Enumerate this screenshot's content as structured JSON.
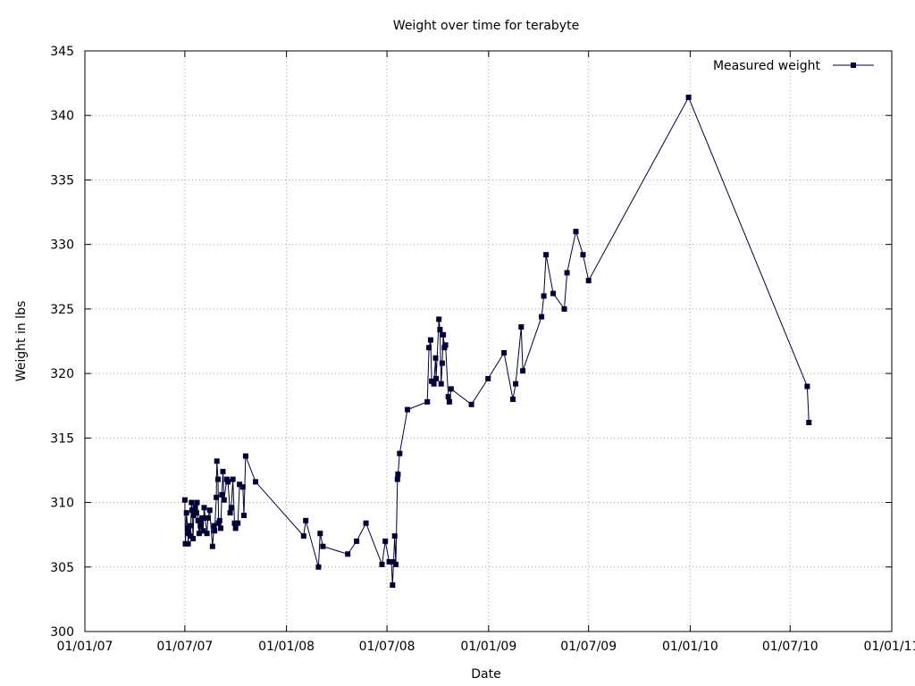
{
  "chart_data": {
    "type": "line",
    "title": "Weight over time for terabyte",
    "xlabel": "Date",
    "ylabel": "Weight in lbs",
    "xlim": [
      "2007-01-01",
      "2011-01-01"
    ],
    "ylim": [
      300,
      345
    ],
    "x_tick_labels": [
      "01/01/07",
      "01/07/07",
      "01/01/08",
      "01/07/08",
      "01/01/09",
      "01/07/09",
      "01/01/10",
      "01/07/10",
      "01/01/11"
    ],
    "x_ticks": [
      "2007-01-01",
      "2007-07-01",
      "2008-01-01",
      "2008-07-01",
      "2009-01-01",
      "2009-07-01",
      "2010-01-01",
      "2010-07-01",
      "2011-01-01"
    ],
    "y_ticks": [
      300,
      305,
      310,
      315,
      320,
      325,
      330,
      335,
      340,
      345
    ],
    "grid": true,
    "legend_position": "top-right",
    "series": [
      {
        "name": "Measured weight",
        "color": "#000033",
        "marker": "square",
        "points": [
          [
            "2007-07-01",
            310.2
          ],
          [
            "2007-07-02",
            306.8
          ],
          [
            "2007-07-04",
            309.2
          ],
          [
            "2007-07-06",
            308.0
          ],
          [
            "2007-07-07",
            306.8
          ],
          [
            "2007-07-08",
            307.6
          ],
          [
            "2007-07-10",
            308.2
          ],
          [
            "2007-07-11",
            307.4
          ],
          [
            "2007-07-13",
            310.0
          ],
          [
            "2007-07-14",
            309.4
          ],
          [
            "2007-07-16",
            307.2
          ],
          [
            "2007-07-17",
            309.0
          ],
          [
            "2007-07-20",
            309.6
          ],
          [
            "2007-07-22",
            309.2
          ],
          [
            "2007-07-23",
            310.0
          ],
          [
            "2007-07-25",
            308.6
          ],
          [
            "2007-07-27",
            307.6
          ],
          [
            "2007-07-29",
            308.2
          ],
          [
            "2007-07-30",
            308.6
          ],
          [
            "2007-08-01",
            308.8
          ],
          [
            "2007-08-03",
            307.8
          ],
          [
            "2007-08-05",
            309.6
          ],
          [
            "2007-08-07",
            308.8
          ],
          [
            "2007-08-10",
            307.6
          ],
          [
            "2007-08-12",
            308.8
          ],
          [
            "2007-08-15",
            309.4
          ],
          [
            "2007-08-20",
            306.6
          ],
          [
            "2007-08-23",
            308.2
          ],
          [
            "2007-08-24",
            307.8
          ],
          [
            "2007-08-27",
            310.4
          ],
          [
            "2007-08-28",
            313.2
          ],
          [
            "2007-08-30",
            311.8
          ],
          [
            "2007-08-31",
            308.4
          ],
          [
            "2007-09-02",
            308.6
          ],
          [
            "2007-09-04",
            308.0
          ],
          [
            "2007-09-06",
            310.6
          ],
          [
            "2007-09-08",
            312.4
          ],
          [
            "2007-09-10",
            310.2
          ],
          [
            "2007-09-15",
            311.8
          ],
          [
            "2007-09-17",
            311.6
          ],
          [
            "2007-09-21",
            309.2
          ],
          [
            "2007-09-23",
            309.6
          ],
          [
            "2007-09-26",
            311.8
          ],
          [
            "2007-09-29",
            308.4
          ],
          [
            "2007-10-01",
            308.0
          ],
          [
            "2007-10-05",
            308.4
          ],
          [
            "2007-10-08",
            311.4
          ],
          [
            "2007-10-14",
            311.2
          ],
          [
            "2007-10-16",
            309.0
          ],
          [
            "2007-10-19",
            313.6
          ],
          [
            "2007-11-06",
            311.6
          ],
          [
            "2008-02-01",
            307.4
          ],
          [
            "2008-02-05",
            308.6
          ],
          [
            "2008-02-28",
            305.0
          ],
          [
            "2008-03-02",
            307.6
          ],
          [
            "2008-03-07",
            306.6
          ],
          [
            "2008-04-21",
            306.0
          ],
          [
            "2008-05-07",
            307.0
          ],
          [
            "2008-05-24",
            308.4
          ],
          [
            "2008-06-22",
            305.2
          ],
          [
            "2008-06-28",
            307.0
          ],
          [
            "2008-07-05",
            305.4
          ],
          [
            "2008-07-09",
            305.4
          ],
          [
            "2008-07-11",
            303.6
          ],
          [
            "2008-07-13",
            305.4
          ],
          [
            "2008-07-15",
            307.4
          ],
          [
            "2008-07-17",
            305.2
          ],
          [
            "2008-07-20",
            311.8
          ],
          [
            "2008-07-21",
            312.2
          ],
          [
            "2008-07-24",
            313.8
          ],
          [
            "2008-08-07",
            317.2
          ],
          [
            "2008-09-12",
            317.8
          ],
          [
            "2008-09-15",
            322.0
          ],
          [
            "2008-09-18",
            322.6
          ],
          [
            "2008-09-20",
            319.4
          ],
          [
            "2008-09-24",
            319.2
          ],
          [
            "2008-09-27",
            321.2
          ],
          [
            "2008-09-28",
            319.6
          ],
          [
            "2008-10-03",
            324.2
          ],
          [
            "2008-10-05",
            323.4
          ],
          [
            "2008-10-07",
            319.2
          ],
          [
            "2008-10-09",
            320.8
          ],
          [
            "2008-10-11",
            323.0
          ],
          [
            "2008-10-13",
            322.0
          ],
          [
            "2008-10-15",
            322.2
          ],
          [
            "2008-10-20",
            318.2
          ],
          [
            "2008-10-22",
            317.8
          ],
          [
            "2008-10-25",
            318.8
          ],
          [
            "2008-12-01",
            317.6
          ],
          [
            "2008-12-31",
            319.6
          ],
          [
            "2009-01-29",
            321.6
          ],
          [
            "2009-02-14",
            318.0
          ],
          [
            "2009-02-19",
            319.2
          ],
          [
            "2009-03-01",
            323.6
          ],
          [
            "2009-03-04",
            320.2
          ],
          [
            "2009-04-07",
            324.4
          ],
          [
            "2009-04-11",
            326.0
          ],
          [
            "2009-04-15",
            329.2
          ],
          [
            "2009-04-28",
            326.2
          ],
          [
            "2009-05-18",
            325.0
          ],
          [
            "2009-05-23",
            327.8
          ],
          [
            "2009-06-08",
            331.0
          ],
          [
            "2009-06-21",
            329.2
          ],
          [
            "2009-07-01",
            327.2
          ],
          [
            "2009-12-29",
            341.4
          ],
          [
            "2010-08-01",
            319.0
          ],
          [
            "2010-08-04",
            316.2
          ]
        ]
      }
    ]
  }
}
